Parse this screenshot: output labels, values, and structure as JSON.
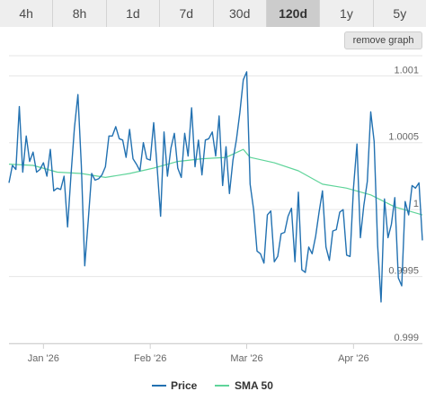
{
  "timeframes": {
    "items": [
      "4h",
      "8h",
      "1d",
      "7d",
      "30d",
      "120d",
      "1y",
      "5y"
    ],
    "active": "120d"
  },
  "remove_graph_label": "remove graph",
  "colors": {
    "price": "#2271b1",
    "sma": "#5fd49a",
    "grid": "#e6e6e6",
    "axis": "#d0d0d0",
    "tab_bg": "#eeeeee",
    "tab_active_bg": "#cccccc"
  },
  "chart_data": {
    "type": "line",
    "title": "",
    "xlabel": "",
    "ylabel": "",
    "x_ticks": [
      {
        "label": "Jan '26",
        "date": "2026-01-01"
      },
      {
        "label": "Feb '26",
        "date": "2026-02-01"
      },
      {
        "label": "Mar '26",
        "date": "2026-03-01"
      },
      {
        "label": "Apr '26",
        "date": "2026-04-01"
      }
    ],
    "y_ticks": [
      {
        "label": "0.999",
        "value": 0.999
      },
      {
        "label": "0.9995",
        "value": 0.9995
      },
      {
        "label": "1",
        "value": 1.0
      },
      {
        "label": "1.0005",
        "value": 1.0005
      },
      {
        "label": "1.001",
        "value": 1.001
      }
    ],
    "xlim": [
      "2025-12-22",
      "2026-04-21"
    ],
    "ylim": [
      0.999,
      1.00115
    ],
    "grid": true,
    "legend_position": "bottom-center",
    "series": [
      {
        "name": "Price",
        "color": "#2271b1",
        "x": [
          "2025-12-22",
          "2025-12-23",
          "2025-12-24",
          "2025-12-25",
          "2025-12-26",
          "2025-12-27",
          "2025-12-28",
          "2025-12-29",
          "2025-12-30",
          "2025-12-31",
          "2026-01-01",
          "2026-01-02",
          "2026-01-03",
          "2026-01-04",
          "2026-01-05",
          "2026-01-06",
          "2026-01-07",
          "2026-01-08",
          "2026-01-09",
          "2026-01-10",
          "2026-01-11",
          "2026-01-12",
          "2026-01-13",
          "2026-01-14",
          "2026-01-15",
          "2026-01-16",
          "2026-01-17",
          "2026-01-18",
          "2026-01-19",
          "2026-01-20",
          "2026-01-21",
          "2026-01-22",
          "2026-01-23",
          "2026-01-24",
          "2026-01-25",
          "2026-01-26",
          "2026-01-27",
          "2026-01-28",
          "2026-01-29",
          "2026-01-30",
          "2026-01-31",
          "2026-02-01",
          "2026-02-02",
          "2026-02-03",
          "2026-02-04",
          "2026-02-05",
          "2026-02-06",
          "2026-02-07",
          "2026-02-08",
          "2026-02-09",
          "2026-02-10",
          "2026-02-11",
          "2026-02-12",
          "2026-02-13",
          "2026-02-14",
          "2026-02-15",
          "2026-02-16",
          "2026-02-17",
          "2026-02-18",
          "2026-02-19",
          "2026-02-20",
          "2026-02-21",
          "2026-02-22",
          "2026-02-23",
          "2026-02-24",
          "2026-02-25",
          "2026-02-26",
          "2026-02-27",
          "2026-02-28",
          "2026-03-01",
          "2026-03-02",
          "2026-03-03",
          "2026-03-04",
          "2026-03-05",
          "2026-03-06",
          "2026-03-07",
          "2026-03-08",
          "2026-03-09",
          "2026-03-10",
          "2026-03-11",
          "2026-03-12",
          "2026-03-13",
          "2026-03-14",
          "2026-03-15",
          "2026-03-16",
          "2026-03-17",
          "2026-03-18",
          "2026-03-19",
          "2026-03-20",
          "2026-03-21",
          "2026-03-22",
          "2026-03-23",
          "2026-03-24",
          "2026-03-25",
          "2026-03-26",
          "2026-03-27",
          "2026-03-28",
          "2026-03-29",
          "2026-03-30",
          "2026-03-31",
          "2026-04-01",
          "2026-04-02",
          "2026-04-03",
          "2026-04-04",
          "2026-04-05",
          "2026-04-06",
          "2026-04-07",
          "2026-04-08",
          "2026-04-09",
          "2026-04-10",
          "2026-04-11",
          "2026-04-12",
          "2026-04-13",
          "2026-04-14",
          "2026-04-15",
          "2026-04-16",
          "2026-04-17",
          "2026-04-18",
          "2026-04-19",
          "2026-04-20",
          "2026-04-21"
        ],
        "y": [
          1.0002,
          1.00033,
          1.0003,
          1.00077,
          1.00028,
          1.00055,
          1.00036,
          1.00043,
          1.00028,
          1.0003,
          1.00035,
          1.00025,
          1.00045,
          1.00014,
          1.00016,
          1.00015,
          1.00025,
          0.99987,
          1.00026,
          1.00061,
          1.00086,
          1.00033,
          0.99958,
          0.99992,
          1.00027,
          1.00022,
          1.00023,
          1.00026,
          1.00032,
          1.00055,
          1.00055,
          1.00062,
          1.00053,
          1.00052,
          1.00039,
          1.0006,
          1.00038,
          1.00034,
          1.00029,
          1.0005,
          1.00038,
          1.00037,
          1.00065,
          1.00032,
          0.99995,
          1.00058,
          1.00025,
          1.00046,
          1.00057,
          1.00031,
          1.00024,
          1.00057,
          1.0004,
          1.00076,
          1.00032,
          1.00052,
          1.00026,
          1.00052,
          1.00053,
          1.00058,
          1.0004,
          1.0007,
          1.00018,
          1.00047,
          1.00012,
          1.00037,
          1.00052,
          1.00072,
          1.00097,
          1.00103,
          1.00019,
          1.0,
          0.99969,
          0.99967,
          0.9996,
          0.99996,
          0.99999,
          0.99961,
          0.99965,
          0.99982,
          0.99983,
          0.99995,
          1.00001,
          0.99961,
          1.00013,
          0.99955,
          0.99953,
          0.99972,
          0.99967,
          0.9998,
          0.99998,
          1.00014,
          0.99972,
          0.99962,
          0.99984,
          0.99985,
          0.99998,
          1.0,
          0.99966,
          0.99965,
          1.00016,
          1.00049,
          0.99979,
          1.00003,
          1.00021,
          1.00073,
          1.00051,
          0.99973,
          0.99931,
          1.00008,
          0.99979,
          0.99989,
          1.00009,
          0.99949,
          0.99943,
          1.00006,
          0.99996,
          1.00018,
          1.00016,
          1.0002,
          0.99977
        ]
      },
      {
        "name": "SMA 50",
        "color": "#5fd49a",
        "x": [
          "2025-12-22",
          "2025-12-29",
          "2026-01-05",
          "2026-01-12",
          "2026-01-19",
          "2026-01-26",
          "2026-02-02",
          "2026-02-09",
          "2026-02-16",
          "2026-02-23",
          "2026-02-28",
          "2026-03-02",
          "2026-03-09",
          "2026-03-16",
          "2026-03-23",
          "2026-03-30",
          "2026-04-06",
          "2026-04-13",
          "2026-04-21"
        ],
        "y": [
          1.00034,
          1.00033,
          1.00028,
          1.00027,
          1.00024,
          1.00027,
          1.00031,
          1.00036,
          1.00038,
          1.00039,
          1.00045,
          1.00039,
          1.00035,
          1.00029,
          1.00019,
          1.00016,
          1.00011,
          1.00002,
          0.99996
        ]
      }
    ]
  }
}
